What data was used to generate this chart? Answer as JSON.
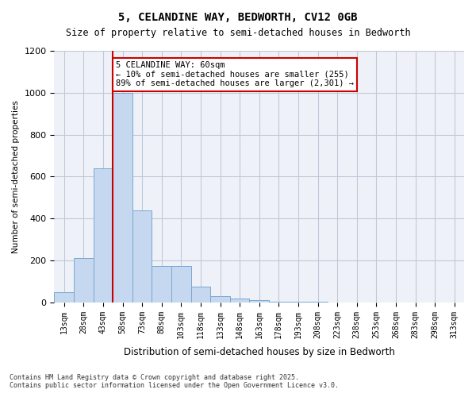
{
  "title": "5, CELANDINE WAY, BEDWORTH, CV12 0GB",
  "subtitle": "Size of property relative to semi-detached houses in Bedworth",
  "xlabel": "Distribution of semi-detached houses by size in Bedworth",
  "ylabel": "Number of semi-detached properties",
  "categories": [
    "13sqm",
    "28sqm",
    "43sqm",
    "58sqm",
    "73sqm",
    "88sqm",
    "103sqm",
    "118sqm",
    "133sqm",
    "148sqm",
    "163sqm",
    "178sqm",
    "193sqm",
    "208sqm",
    "223sqm",
    "238sqm",
    "253sqm",
    "268sqm",
    "283sqm",
    "298sqm",
    "313sqm"
  ],
  "bar_values": [
    50,
    210,
    640,
    1000,
    440,
    175,
    175,
    75,
    30,
    20,
    10,
    5,
    3,
    2,
    1,
    1,
    0,
    0,
    0,
    0,
    0
  ],
  "bar_color": "#c5d8f0",
  "bar_edgecolor": "#7ba7d0",
  "grid_color": "#c0c8d8",
  "background_color": "#eef2f8",
  "property_line_x": 60,
  "property_line_color": "#cc0000",
  "annotation_text": "5 CELANDINE WAY: 60sqm\n← 10% of semi-detached houses are smaller (255)\n89% of semi-detached houses are larger (2,301) →",
  "annotation_box_color": "#cc0000",
  "ylim": [
    0,
    1200
  ],
  "yticks": [
    0,
    200,
    400,
    600,
    800,
    1000,
    1200
  ],
  "footer_line1": "Contains HM Land Registry data © Crown copyright and database right 2025.",
  "footer_line2": "Contains public sector information licensed under the Open Government Licence v3.0."
}
